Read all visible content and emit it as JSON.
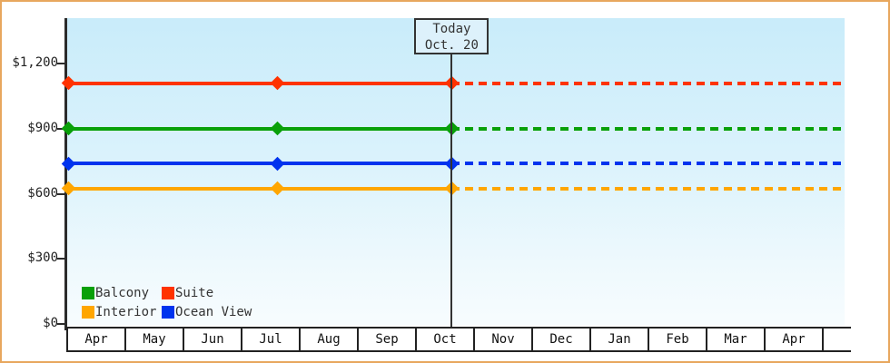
{
  "frame": {
    "border_color": "#e8a75e",
    "background": "#ffffff"
  },
  "chart_data": {
    "type": "line",
    "title": "",
    "y_axis": {
      "tick_values": [
        0,
        300,
        600,
        900,
        1200
      ],
      "tick_labels": [
        "$0",
        "$300",
        "$600",
        "$900",
        "$1,200"
      ],
      "range": [
        0,
        1410
      ]
    },
    "x_axis": {
      "month_labels": [
        "Apr",
        "May",
        "Jun",
        "Jul",
        "Aug",
        "Sep",
        "Oct",
        "Nov",
        "Dec",
        "Jan",
        "Feb",
        "Mar",
        "Apr"
      ]
    },
    "today_marker": {
      "line1": "Today",
      "line2": "Oct. 20",
      "month_position": 6.6
    },
    "projection_style": "solid-before-today-dashed-after",
    "series": [
      {
        "name": "Suite",
        "color": "#ff3300",
        "value": 1110,
        "marker_month_positions": [
          0,
          3.6,
          6.6
        ]
      },
      {
        "name": "Balcony",
        "color": "#09a009",
        "value": 900,
        "marker_month_positions": [
          0,
          3.6,
          6.6
        ]
      },
      {
        "name": "Ocean View",
        "color": "#0033ee",
        "value": 740,
        "marker_month_positions": [
          0,
          3.6,
          6.6
        ]
      },
      {
        "name": "Interior",
        "color": "#ffa600",
        "value": 625,
        "marker_month_positions": [
          0,
          3.6,
          6.6
        ]
      }
    ]
  },
  "legend": {
    "items": [
      {
        "label": "Balcony",
        "color": "#09a009"
      },
      {
        "label": "Suite",
        "color": "#ff3300"
      },
      {
        "label": "Interior",
        "color": "#ffa600"
      },
      {
        "label": "Ocean View",
        "color": "#0033ee"
      }
    ]
  }
}
